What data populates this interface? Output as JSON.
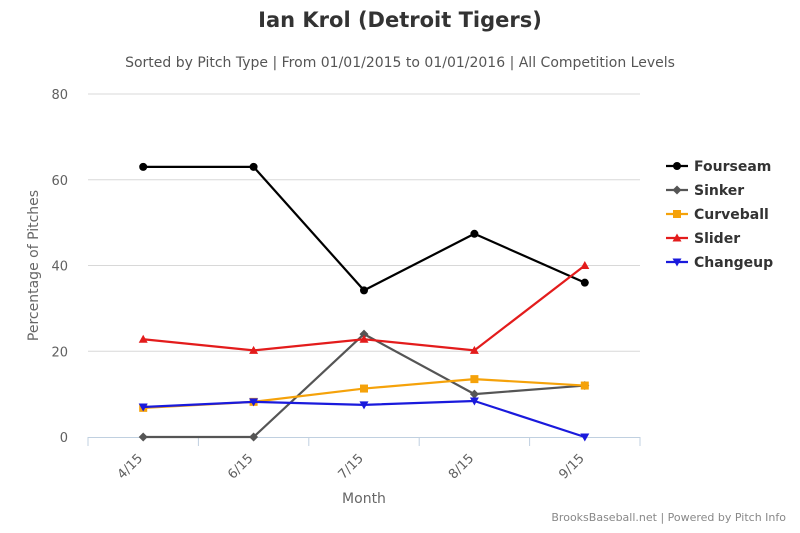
{
  "chart_data": {
    "type": "line",
    "title": "Ian Krol (Detroit Tigers)",
    "subtitle": "Sorted by Pitch Type | From 01/01/2015 to 01/01/2016 | All Competition Levels",
    "xlabel": "Month",
    "ylabel": "Percentage of Pitches",
    "categories": [
      "4/15",
      "6/15",
      "7/15",
      "8/15",
      "9/15"
    ],
    "ylim": [
      0,
      80
    ],
    "yticks": [
      0,
      20,
      40,
      60,
      80
    ],
    "grid": true,
    "legend_position": "right",
    "series": [
      {
        "name": "Fourseam",
        "color": "#000000",
        "marker": "circle",
        "values": [
          63.0,
          63.0,
          34.2,
          47.4,
          36.0
        ]
      },
      {
        "name": "Sinker",
        "color": "#555555",
        "marker": "diamond",
        "values": [
          0.0,
          0.0,
          24.0,
          10.0,
          12.0
        ]
      },
      {
        "name": "Curveball",
        "color": "#f5a20a",
        "marker": "square",
        "values": [
          6.8,
          8.2,
          11.3,
          13.5,
          12.0
        ]
      },
      {
        "name": "Slider",
        "color": "#e31c1c",
        "marker": "triangle",
        "values": [
          22.8,
          20.2,
          22.8,
          20.2,
          40.0
        ]
      },
      {
        "name": "Changeup",
        "color": "#1a1adc",
        "marker": "triangle-down",
        "values": [
          7.0,
          8.2,
          7.5,
          8.4,
          0.0
        ]
      }
    ]
  },
  "credit": "BrooksBaseball.net | Powered by Pitch Info"
}
